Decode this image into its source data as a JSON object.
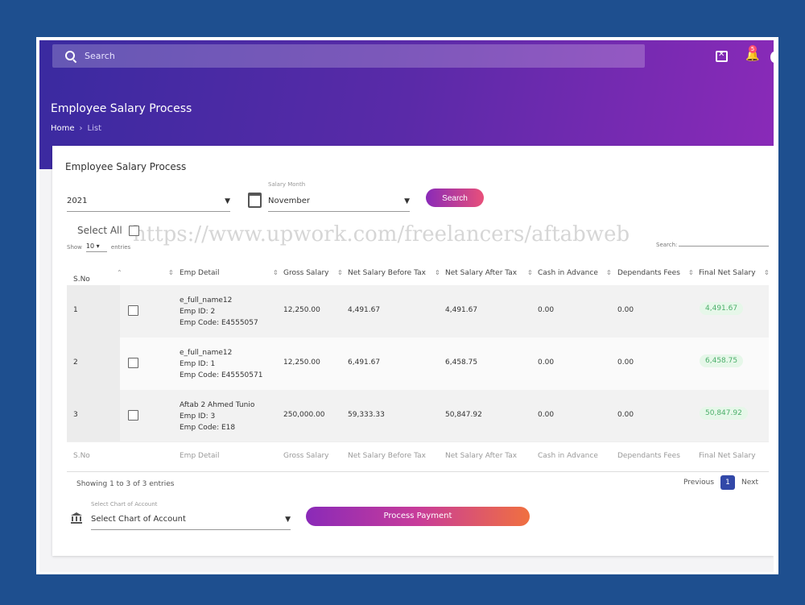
{
  "header": {
    "search_placeholder": "Search",
    "notification_count": "5",
    "page_title": "Employee Salary Process",
    "breadcrumb": {
      "home": "Home",
      "sep": "›",
      "current": "List"
    }
  },
  "card": {
    "title": "Employee Salary Process",
    "year_value": "2021",
    "salary_month_label": "Salary Month",
    "month_value": "November",
    "search_button": "Search",
    "select_all": "Select All",
    "watermark": "https://www.upwork.com/freelancers/aftabweb",
    "show_label": "Show",
    "entries_value": "10",
    "entries_label": "entries",
    "table_search_label": "Search:"
  },
  "table": {
    "columns": [
      "S.No",
      "Emp Detail",
      "Gross Salary",
      "Net Salary Before Tax",
      "Net Salary After Tax",
      "Cash in Advance",
      "Dependants Fees",
      "Final Net Salary"
    ],
    "rows": [
      {
        "sno": "1",
        "name": "e_full_name12",
        "emp_id": "Emp ID: 2",
        "emp_code": "Emp Code: E4555057",
        "gross": "12,250.00",
        "before_tax": "4,491.67",
        "after_tax": "4,491.67",
        "cash_advance": "0.00",
        "dependants": "0.00",
        "final": "4,491.67"
      },
      {
        "sno": "2",
        "name": "e_full_name12",
        "emp_id": "Emp ID: 1",
        "emp_code": "Emp Code: E45550571",
        "gross": "12,250.00",
        "before_tax": "6,491.67",
        "after_tax": "6,458.75",
        "cash_advance": "0.00",
        "dependants": "0.00",
        "final": "6,458.75"
      },
      {
        "sno": "3",
        "name": "Aftab 2 Ahmed Tunio",
        "emp_id": "Emp ID: 3",
        "emp_code": "Emp Code: E18",
        "gross": "250,000.00",
        "before_tax": "59,333.33",
        "after_tax": "50,847.92",
        "cash_advance": "0.00",
        "dependants": "0.00",
        "final": "50,847.92"
      }
    ],
    "showing": "Showing 1 to 3 of 3 entries",
    "pager": {
      "previous": "Previous",
      "page": "1",
      "next": "Next"
    }
  },
  "footer": {
    "coa_label": "Select Chart of Account",
    "coa_value": "Select Chart of Account",
    "process_button": "Process Payment"
  },
  "colors": {
    "primary_gradient_start": "#3a2aa0",
    "primary_gradient_end": "#8a2ab8",
    "final_pill_bg": "#e6f7e9",
    "final_pill_text": "#4caf6a",
    "pager_active": "#3248a8"
  }
}
